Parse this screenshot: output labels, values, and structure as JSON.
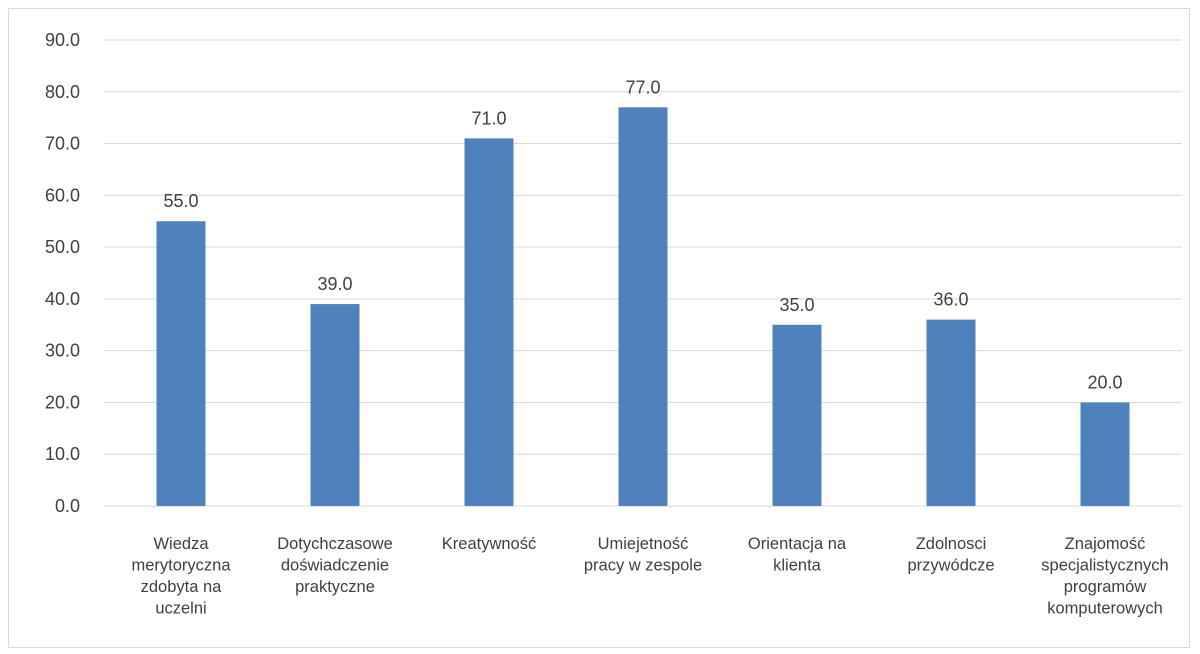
{
  "chart_data": {
    "type": "bar",
    "categories": [
      [
        "Wiedza",
        "merytoryczna",
        "zdobyta na",
        "uczelni"
      ],
      [
        "Dotychczasowe",
        "doświadczenie",
        "praktyczne"
      ],
      [
        "Kreatywność"
      ],
      [
        "Umiejetność",
        "pracy w zespole"
      ],
      [
        "Orientacja na",
        "klienta"
      ],
      [
        "Zdolnosci",
        "przywódcze"
      ],
      [
        "Znajomość",
        "specjalistycznych",
        "programów",
        "komputerowych"
      ]
    ],
    "values": [
      55.0,
      39.0,
      71.0,
      77.0,
      35.0,
      36.0,
      20.0
    ],
    "data_labels": [
      "55.0",
      "39.0",
      "71.0",
      "77.0",
      "35.0",
      "36.0",
      "20.0"
    ],
    "y_ticks": [
      "0.0",
      "10.0",
      "20.0",
      "30.0",
      "40.0",
      "50.0",
      "60.0",
      "70.0",
      "80.0",
      "90.0"
    ],
    "ylim": [
      0,
      90
    ],
    "title": "",
    "xlabel": "",
    "ylabel": "",
    "grid": true,
    "legend": "none",
    "colors": {
      "bar": "#4f81bd",
      "grid": "#d9d9d9",
      "text": "#404040"
    }
  }
}
